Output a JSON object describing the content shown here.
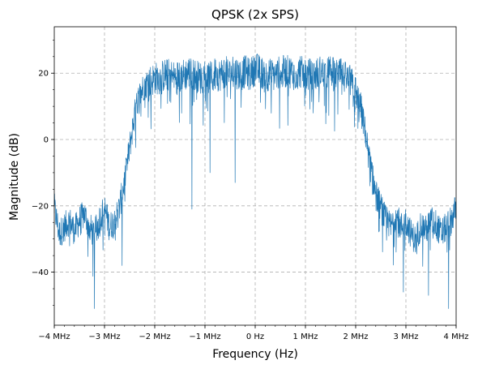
{
  "chart_data": {
    "type": "line",
    "title": "QPSK (2x SPS)",
    "xlabel": "Frequency (Hz)",
    "ylabel": "Magnitude (dB)",
    "xlim": [
      -4,
      4
    ],
    "ylim": [
      -56,
      34
    ],
    "x_unit": "MHz",
    "x_ticks": [
      {
        "value": -4,
        "label": "−4 MHz"
      },
      {
        "value": -3,
        "label": "−3 MHz"
      },
      {
        "value": -2,
        "label": "−2 MHz"
      },
      {
        "value": -1,
        "label": "−1 MHz"
      },
      {
        "value": 0,
        "label": "0 Hz"
      },
      {
        "value": 1,
        "label": "1 MHz"
      },
      {
        "value": 2,
        "label": "2 MHz"
      },
      {
        "value": 3,
        "label": "3 MHz"
      },
      {
        "value": 4,
        "label": "4 MHz"
      }
    ],
    "y_ticks": [
      {
        "value": 20,
        "label": "20"
      },
      {
        "value": 0,
        "label": "0"
      },
      {
        "value": -20,
        "label": "−20"
      },
      {
        "value": -40,
        "label": "−40"
      }
    ],
    "grid": true,
    "grid_style": "dashed",
    "line_color": "#1f77b4",
    "series": [
      {
        "x": [
          -4.0,
          -3.9,
          -3.8,
          -3.7,
          -3.6,
          -3.5,
          -3.4,
          -3.3,
          -3.2,
          -3.1,
          -3.0,
          -2.9,
          -2.8,
          -2.7,
          -2.6,
          -2.5,
          -2.4,
          -2.3,
          -2.2,
          -2.1,
          -2.0,
          -1.9,
          -1.8,
          -1.7,
          -1.6,
          -1.5,
          -1.4,
          -1.3,
          -1.2,
          -1.1,
          -1.0,
          -0.9,
          -0.8,
          -0.7,
          -0.6,
          -0.5,
          -0.4,
          -0.3,
          -0.2,
          -0.1,
          0.0,
          0.1,
          0.2,
          0.3,
          0.4,
          0.5,
          0.6,
          0.7,
          0.8,
          0.9,
          1.0,
          1.1,
          1.2,
          1.3,
          1.4,
          1.5,
          1.6,
          1.7,
          1.8,
          1.9,
          2.0,
          2.1,
          2.2,
          2.3,
          2.4,
          2.5,
          2.6,
          2.7,
          2.8,
          2.9,
          3.0,
          3.1,
          3.2,
          3.3,
          3.4,
          3.5,
          3.6,
          3.7,
          3.8,
          3.9,
          4.0
        ],
        "values": [
          -20,
          -28,
          -26,
          -24,
          -27,
          -24,
          -22,
          -26,
          -28,
          -24,
          -20,
          -26,
          -24,
          -20,
          -12,
          -2,
          8,
          14,
          17,
          18,
          19,
          19,
          20,
          20,
          19,
          20,
          20,
          21,
          20,
          19,
          20,
          19,
          20,
          20,
          21,
          20,
          21,
          20,
          21,
          20,
          22,
          21,
          20,
          20,
          20,
          21,
          21,
          21,
          20,
          21,
          20,
          20,
          20,
          21,
          20,
          21,
          20,
          20,
          19,
          18,
          15,
          10,
          2,
          -8,
          -16,
          -20,
          -24,
          -26,
          -22,
          -26,
          -24,
          -28,
          -30,
          -25,
          -27,
          -24,
          -25,
          -28,
          -26,
          -24,
          -20
        ]
      }
    ],
    "dips": [
      {
        "x": -3.2,
        "value": -51
      },
      {
        "x": -2.65,
        "value": -38
      },
      {
        "x": -1.26,
        "value": -21
      },
      {
        "x": -0.9,
        "value": -10
      },
      {
        "x": -0.4,
        "value": -13
      },
      {
        "x": 2.95,
        "value": -46
      },
      {
        "x": 3.45,
        "value": -47
      },
      {
        "x": 3.85,
        "value": -51
      }
    ]
  }
}
